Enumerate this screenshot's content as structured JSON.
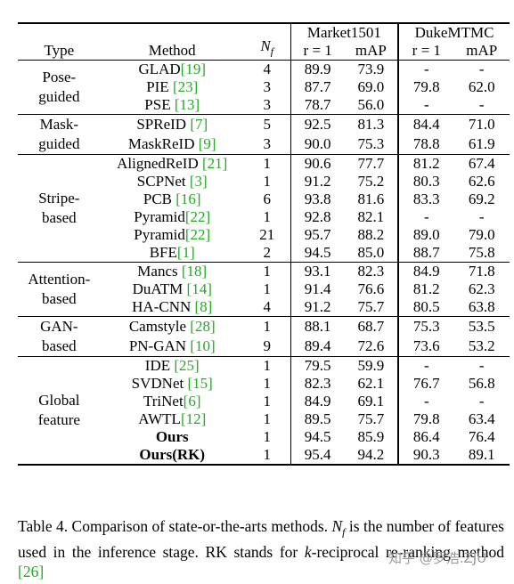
{
  "table": {
    "header": {
      "type": "Type",
      "method": "Method",
      "nf_symbol": "N",
      "nf_sub": "f",
      "market": "Market1501",
      "duke": "DukeMTMC",
      "rank1": "r = 1",
      "map": "mAP"
    },
    "groups": [
      {
        "type_lines": [
          "Pose-",
          "guided"
        ],
        "rows": [
          {
            "method": "GLAD",
            "cite": "[19]",
            "cite_space": false,
            "nf": "4",
            "m_r1": "89.9",
            "m_map": "73.9",
            "d_r1": "-",
            "d_map": "-"
          },
          {
            "method": "PIE",
            "cite": "[23]",
            "cite_space": true,
            "nf": "3",
            "m_r1": "87.7",
            "m_map": "69.0",
            "d_r1": "79.8",
            "d_map": "62.0"
          },
          {
            "method": "PSE",
            "cite": "[13]",
            "cite_space": true,
            "nf": "3",
            "m_r1": "78.7",
            "m_map": "56.0",
            "d_r1": "-",
            "d_map": "-"
          }
        ]
      },
      {
        "type_lines": [
          "Mask-",
          "guided"
        ],
        "rows": [
          {
            "method": "SPReID",
            "cite": "[7]",
            "cite_space": true,
            "nf": "5",
            "m_r1": "92.5",
            "m_map": "81.3",
            "d_r1": "84.4",
            "d_map": "71.0"
          },
          {
            "method": "MaskReID",
            "cite": "[9]",
            "cite_space": true,
            "nf": "3",
            "m_r1": "90.0",
            "m_map": "75.3",
            "d_r1": "78.8",
            "d_map": "61.9"
          }
        ]
      },
      {
        "type_lines": [
          "Stripe-",
          "based"
        ],
        "rows": [
          {
            "method": "AlignedReID",
            "cite": "[21]",
            "cite_space": true,
            "nf": "1",
            "m_r1": "90.6",
            "m_map": "77.7",
            "d_r1": "81.2",
            "d_map": "67.4"
          },
          {
            "method": "SCPNet",
            "cite": "[3]",
            "cite_space": true,
            "nf": "1",
            "m_r1": "91.2",
            "m_map": "75.2",
            "d_r1": "80.3",
            "d_map": "62.6"
          },
          {
            "method": "PCB",
            "cite": "[16]",
            "cite_space": true,
            "nf": "6",
            "m_r1": "93.8",
            "m_map": "81.6",
            "d_r1": "83.3",
            "d_map": "69.2"
          },
          {
            "method": "Pyramid",
            "cite": "[22]",
            "cite_space": false,
            "nf": "1",
            "m_r1": "92.8",
            "m_map": "82.1",
            "d_r1": "-",
            "d_map": "-"
          },
          {
            "method": "Pyramid",
            "cite": "[22]",
            "cite_space": false,
            "nf": "21",
            "m_r1": "95.7",
            "m_map": "88.2",
            "d_r1": "89.0",
            "d_map": "79.0"
          },
          {
            "method": "BFE",
            "cite": "[1]",
            "cite_space": false,
            "nf": "2",
            "m_r1": "94.5",
            "m_map": "85.0",
            "d_r1": "88.7",
            "d_map": "75.8"
          }
        ]
      },
      {
        "type_lines": [
          "Attention-",
          "based"
        ],
        "rows": [
          {
            "method": "Mancs",
            "cite": "[18]",
            "cite_space": true,
            "nf": "1",
            "m_r1": "93.1",
            "m_map": "82.3",
            "d_r1": "84.9",
            "d_map": "71.8"
          },
          {
            "method": "DuATM",
            "cite": "[14]",
            "cite_space": true,
            "nf": "1",
            "m_r1": "91.4",
            "m_map": "76.6",
            "d_r1": "81.2",
            "d_map": "62.3"
          },
          {
            "method": "HA-CNN",
            "cite": "[8]",
            "cite_space": true,
            "nf": "4",
            "m_r1": "91.2",
            "m_map": "75.7",
            "d_r1": "80.5",
            "d_map": "63.8"
          }
        ]
      },
      {
        "type_lines": [
          "GAN-",
          "based"
        ],
        "rows": [
          {
            "method": "Camstyle",
            "cite": "[28]",
            "cite_space": true,
            "nf": "1",
            "m_r1": "88.1",
            "m_map": "68.7",
            "d_r1": "75.3",
            "d_map": "53.5"
          },
          {
            "method": "PN-GAN",
            "cite": "[10]",
            "cite_space": true,
            "nf": "9",
            "m_r1": "89.4",
            "m_map": "72.6",
            "d_r1": "73.6",
            "d_map": "53.2"
          }
        ]
      },
      {
        "type_lines": [
          "Global",
          "feature"
        ],
        "rows": [
          {
            "method": "IDE",
            "cite": "[25]",
            "cite_space": true,
            "nf": "1",
            "m_r1": "79.5",
            "m_map": "59.9",
            "d_r1": "-",
            "d_map": "-"
          },
          {
            "method": "SVDNet",
            "cite": "[15]",
            "cite_space": true,
            "nf": "1",
            "m_r1": "82.3",
            "m_map": "62.1",
            "d_r1": "76.7",
            "d_map": "56.8"
          },
          {
            "method": "TriNet",
            "cite": "[6]",
            "cite_space": false,
            "nf": "1",
            "m_r1": "84.9",
            "m_map": "69.1",
            "d_r1": "-",
            "d_map": "-"
          },
          {
            "method": "AWTL",
            "cite": "[12]",
            "cite_space": false,
            "nf": "1",
            "m_r1": "89.5",
            "m_map": "75.7",
            "d_r1": "79.8",
            "d_map": "63.4"
          },
          {
            "method": "Ours",
            "cite": "",
            "cite_space": false,
            "bold": true,
            "nf": "1",
            "m_r1": "94.5",
            "m_map": "85.9",
            "d_r1": "86.4",
            "d_map": "76.4"
          },
          {
            "method": "Ours(RK)",
            "cite": "",
            "cite_space": false,
            "bold": true,
            "nf": "1",
            "m_r1": "95.4",
            "m_map": "94.2",
            "d_r1": "90.3",
            "d_map": "89.1"
          }
        ]
      }
    ]
  },
  "caption": {
    "p1": "Table 4. Comparison of state-or-the-arts methods. ",
    "nf_symbol": "N",
    "nf_sub": "f",
    "p2": " is the number of features used in the inference stage.  RK stands for ",
    "k": "k",
    "p3": "-reciprocal re-ranking method ",
    "cite": "[26]"
  },
  "watermark": "知乎 @罗浩.ZJU"
}
